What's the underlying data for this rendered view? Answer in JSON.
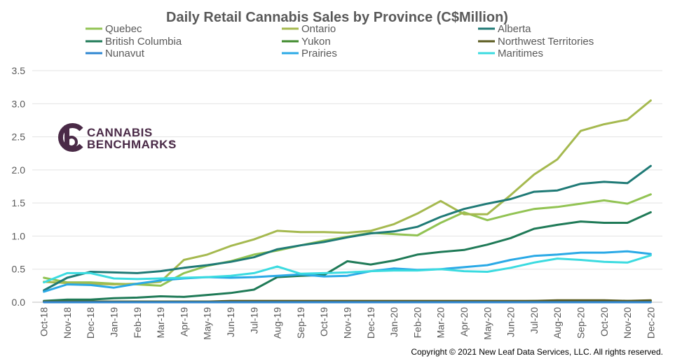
{
  "chart_data": {
    "type": "line",
    "title": "Daily Retail Cannabis Sales by Province (C$Million)",
    "xlabel": "",
    "ylabel": "",
    "ylim": [
      0,
      3.5
    ],
    "yticks": [
      "0.0",
      "0.5",
      "1.0",
      "1.5",
      "2.0",
      "2.5",
      "3.0",
      "3.5"
    ],
    "grid": true,
    "legend_position": "top",
    "categories": [
      "Oct-18",
      "Nov-18",
      "Dec-18",
      "Jan-19",
      "Feb-19",
      "Mar-19",
      "Apr-19",
      "May-19",
      "Jun-19",
      "Jul-19",
      "Aug-19",
      "Sep-19",
      "Oct-19",
      "Nov-19",
      "Dec-19",
      "Jan-20",
      "Feb-20",
      "Mar-20",
      "Apr-20",
      "May-20",
      "Jun-20",
      "Jul-20",
      "Aug-20",
      "Sep-20",
      "Oct-20",
      "Nov-20",
      "Dec-20"
    ],
    "series": [
      {
        "name": "Quebec",
        "color": "#92c353",
        "values": [
          0.37,
          0.3,
          0.3,
          0.28,
          0.27,
          0.25,
          0.44,
          0.55,
          0.62,
          0.72,
          0.78,
          0.86,
          0.93,
          0.99,
          1.05,
          1.03,
          1.01,
          1.2,
          1.36,
          1.24,
          1.33,
          1.41,
          1.44,
          1.49,
          1.54,
          1.49,
          1.63
        ]
      },
      {
        "name": "Ontario",
        "color": "#a5b94f",
        "values": [
          0.31,
          0.29,
          0.28,
          0.27,
          0.28,
          0.31,
          0.64,
          0.72,
          0.85,
          0.95,
          1.08,
          1.06,
          1.06,
          1.05,
          1.08,
          1.18,
          1.34,
          1.53,
          1.33,
          1.33,
          1.62,
          1.93,
          2.16,
          2.59,
          2.69,
          2.76,
          3.05
        ]
      },
      {
        "name": "Alberta",
        "color": "#1f7a76",
        "values": [
          0.18,
          0.37,
          0.46,
          0.45,
          0.44,
          0.47,
          0.52,
          0.56,
          0.61,
          0.68,
          0.8,
          0.86,
          0.91,
          0.98,
          1.04,
          1.07,
          1.14,
          1.29,
          1.41,
          1.49,
          1.56,
          1.67,
          1.69,
          1.79,
          1.82,
          1.8,
          2.06
        ]
      },
      {
        "name": "British Columbia",
        "color": "#1f7a57",
        "values": [
          0.02,
          0.04,
          0.04,
          0.06,
          0.07,
          0.09,
          0.08,
          0.11,
          0.14,
          0.19,
          0.38,
          0.4,
          0.41,
          0.62,
          0.57,
          0.63,
          0.72,
          0.76,
          0.79,
          0.87,
          0.97,
          1.11,
          1.17,
          1.22,
          1.2,
          1.2,
          1.36
        ]
      },
      {
        "name": "Yukon",
        "color": "#3f8a2c",
        "values": [
          0.01,
          0.01,
          0.01,
          0.01,
          0.01,
          0.01,
          0.01,
          0.01,
          0.01,
          0.01,
          0.01,
          0.01,
          0.01,
          0.01,
          0.01,
          0.01,
          0.01,
          0.01,
          0.01,
          0.01,
          0.01,
          0.02,
          0.02,
          0.02,
          0.02,
          0.02,
          0.02
        ]
      },
      {
        "name": "Northwest Territories",
        "color": "#5a5a1e",
        "values": [
          0.01,
          0.01,
          0.01,
          0.01,
          0.01,
          0.01,
          0.01,
          0.01,
          0.02,
          0.02,
          0.02,
          0.02,
          0.02,
          0.02,
          0.02,
          0.02,
          0.02,
          0.02,
          0.02,
          0.02,
          0.02,
          0.02,
          0.03,
          0.03,
          0.03,
          0.02,
          0.03
        ]
      },
      {
        "name": "Nunavut",
        "color": "#2e86d1",
        "values": [
          0.0,
          0.0,
          0.0,
          0.0,
          0.0,
          0.0,
          0.0,
          0.0,
          0.0,
          0.0,
          0.0,
          0.0,
          0.0,
          0.0,
          0.0,
          0.0,
          0.0,
          0.0,
          0.0,
          0.0,
          0.0,
          0.0,
          0.0,
          0.0,
          0.0,
          0.0,
          0.0
        ]
      },
      {
        "name": "Prairies",
        "color": "#2aa9e6",
        "values": [
          0.16,
          0.27,
          0.26,
          0.22,
          0.28,
          0.33,
          0.36,
          0.38,
          0.37,
          0.38,
          0.4,
          0.42,
          0.39,
          0.4,
          0.47,
          0.51,
          0.49,
          0.5,
          0.53,
          0.56,
          0.64,
          0.7,
          0.72,
          0.75,
          0.75,
          0.77,
          0.73
        ]
      },
      {
        "name": "Maritimes",
        "color": "#3bdbe0",
        "values": [
          0.3,
          0.44,
          0.44,
          0.36,
          0.35,
          0.36,
          0.37,
          0.38,
          0.4,
          0.44,
          0.54,
          0.43,
          0.44,
          0.45,
          0.47,
          0.48,
          0.48,
          0.5,
          0.47,
          0.46,
          0.52,
          0.6,
          0.66,
          0.64,
          0.61,
          0.6,
          0.71
        ]
      }
    ]
  },
  "logo": {
    "line1": "CANNABIS",
    "line2": "BENCHMARKS",
    "registered": "®",
    "color": "#4a2a47"
  },
  "footer": {
    "copyright": "Copyright © 2021 New Leaf Data Services, LLC. All rights reserved."
  }
}
